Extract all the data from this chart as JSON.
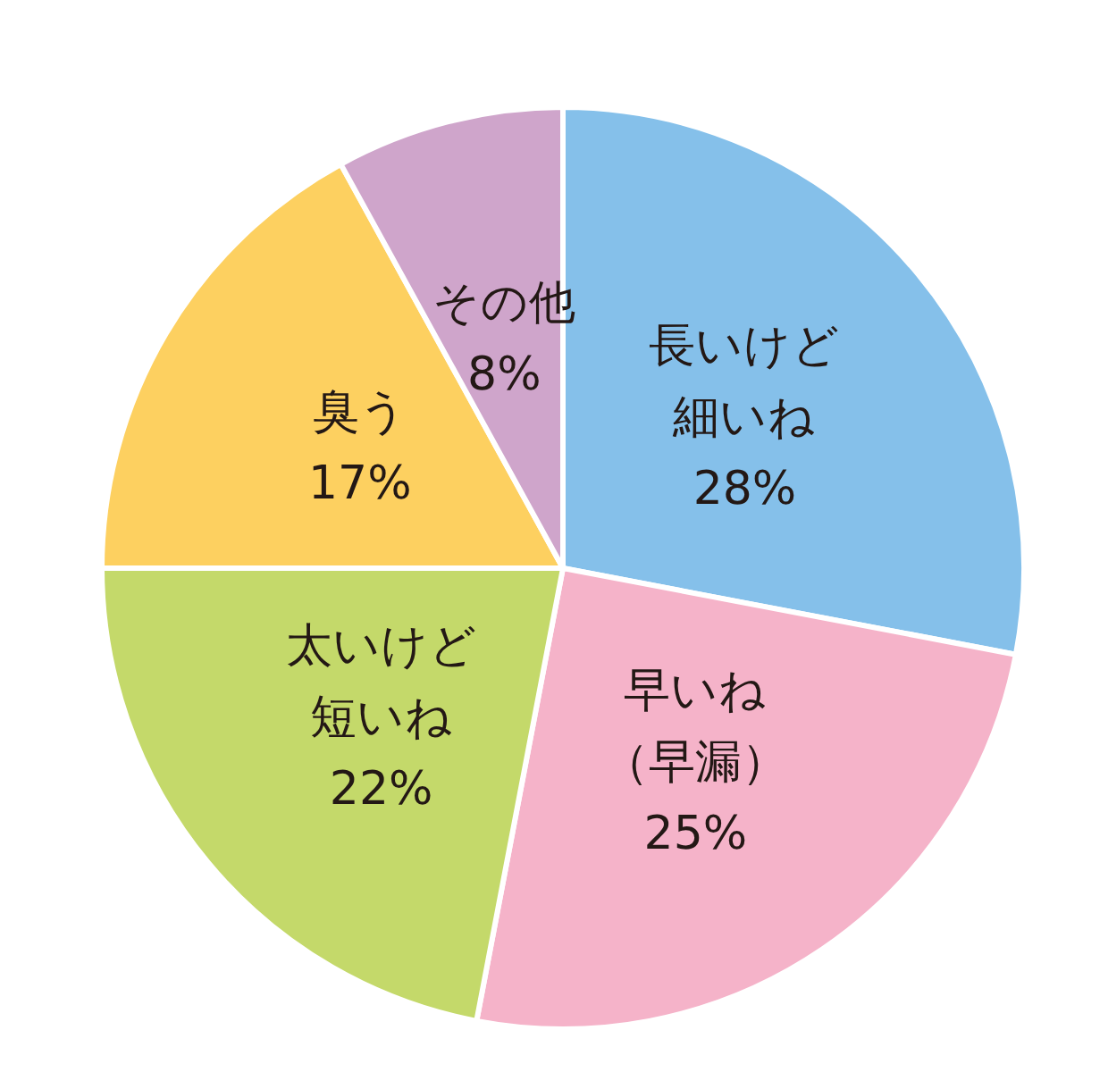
{
  "chart_data": {
    "type": "pie",
    "categories": [
      "長いけど細いね",
      "早いね（早漏）",
      "太いけど短いね",
      "臭う",
      "その他"
    ],
    "values": [
      28,
      25,
      22,
      17,
      8
    ],
    "value_labels": [
      "28%",
      "25%",
      "22%",
      "17%",
      "8%"
    ],
    "colors": [
      "#85c0ea",
      "#f5b3c9",
      "#c4d96a",
      "#fdd060",
      "#cfa5cb"
    ]
  }
}
